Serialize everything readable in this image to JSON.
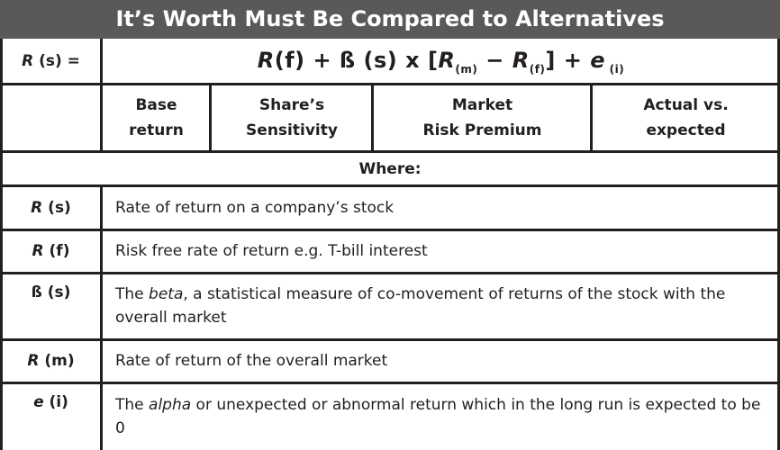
{
  "title": "It’s Worth Must Be Compared to Alternatives",
  "formula": {
    "lhs_sym": "R",
    "lhs_arg": " (s) =",
    "rf_sym": "R",
    "rf_arg": "(f) + ß (s) x [",
    "rm_sym": "R",
    "rm_sub": "(m)",
    "minus": " − ",
    "rf2_sym": "R",
    "rf2_sub": "(f)",
    "plus": "] + ",
    "e_sym": "e",
    "e_sub": " (i)"
  },
  "components": [
    {
      "line1": "Base",
      "line2": "return"
    },
    {
      "line1": "Share’s",
      "line2": "Sensitivity"
    },
    {
      "line1": "Market",
      "line2": "Risk Premium"
    },
    {
      "line1": "Actual vs.",
      "line2": "expected"
    }
  ],
  "where_label": "Where:",
  "definitions": [
    {
      "sym": "R",
      "arg": " (s)",
      "pre": "Rate of return on a company’s stock",
      "em": "",
      "post": ""
    },
    {
      "sym": "R",
      "arg": " (f)",
      "pre": "Risk free rate of return e.g. T-bill interest",
      "em": "",
      "post": ""
    },
    {
      "sym": "ß",
      "arg": " (s)",
      "pre": "The ",
      "em": "beta",
      "post": ", a statistical measure of co-movement of returns of the stock with the overall market"
    },
    {
      "sym": "R",
      "arg": " (m)",
      "pre": "Rate of return of the overall market",
      "em": "",
      "post": ""
    },
    {
      "sym": "e",
      "arg": " (i)",
      "pre": "The ",
      "em": "alpha",
      "post": " or unexpected or abnormal return which in the long run is expected to be 0"
    }
  ],
  "colors": {
    "title_bg": "#595959",
    "title_text": "#ffffff",
    "border": "#231f20"
  }
}
